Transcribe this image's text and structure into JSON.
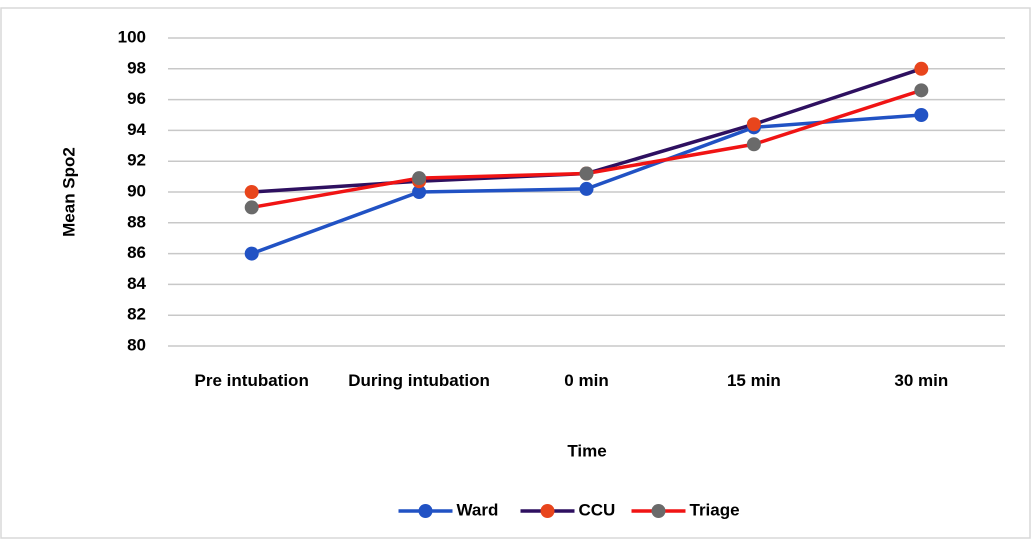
{
  "chart_data": {
    "type": "line",
    "x_label": "Time",
    "y_label": "Mean Spo2",
    "categories": [
      "Pre intubation",
      "During intubation",
      "0 min",
      "15 min",
      "30 min"
    ],
    "series": [
      {
        "name": "Ward",
        "color": "#2152c4",
        "marker_color": "#2152c4",
        "values": [
          86,
          90,
          90.2,
          94.2,
          95
        ]
      },
      {
        "name": "CCU",
        "color": "#2e1060",
        "marker_color": "#e8451c",
        "values": [
          90,
          90.7,
          91.2,
          94.4,
          98
        ]
      },
      {
        "name": "Triage",
        "color": "#f01414",
        "marker_color": "#6a6a6a",
        "values": [
          89,
          90.9,
          91.2,
          93.1,
          96.6
        ]
      }
    ],
    "ylim": [
      80,
      100
    ],
    "yticks": [
      80,
      82,
      84,
      86,
      88,
      90,
      92,
      94,
      96,
      98,
      100
    ],
    "grid": true,
    "legend": "bottom"
  }
}
